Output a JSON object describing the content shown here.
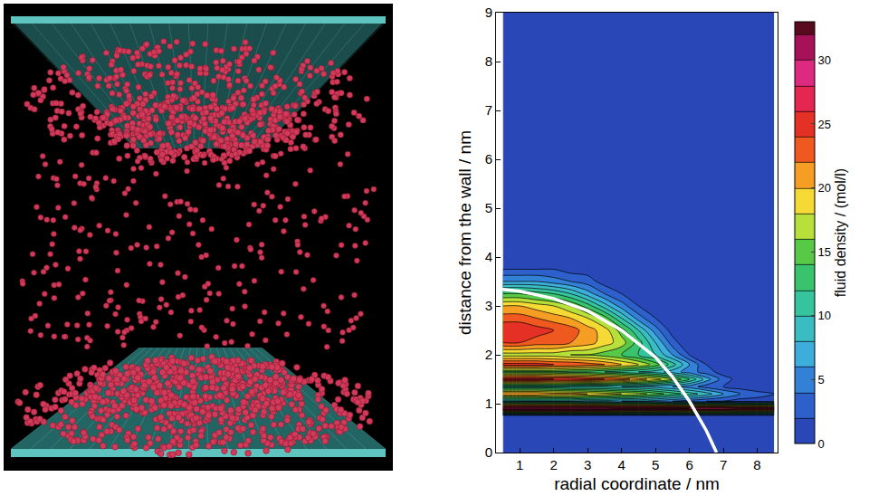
{
  "chart_data": {
    "type": "contour",
    "x_label": "radial coordinate / nm",
    "y_label": "distance from the wall / nm",
    "xlim": [
      0.3,
      8.6
    ],
    "xticks": [
      1,
      2,
      3,
      4,
      5,
      6,
      7,
      8
    ],
    "ylim": [
      0,
      9
    ],
    "yticks": [
      0,
      1,
      2,
      3,
      4,
      5,
      6,
      7,
      8,
      9
    ],
    "x": [
      0.5,
      1,
      1.5,
      2,
      2.5,
      3,
      3.5,
      4,
      4.5,
      5,
      5.5,
      6,
      6.5,
      7,
      7.5,
      8,
      8.5
    ],
    "y": [
      0,
      0.5,
      0.75,
      0.9,
      1.05,
      1.2,
      1.35,
      1.5,
      1.65,
      1.8,
      2.0,
      2.25,
      2.5,
      2.75,
      3.0,
      3.25,
      3.5,
      3.75,
      4.0,
      5,
      9
    ],
    "z": [
      [
        0,
        0,
        0,
        0,
        0,
        0,
        0,
        0,
        0,
        0,
        0,
        0,
        0,
        0,
        0,
        0,
        0
      ],
      [
        0,
        0,
        0,
        0,
        0,
        0,
        0,
        0,
        0,
        0,
        0,
        0,
        0,
        0,
        0,
        0,
        0
      ],
      [
        0,
        0,
        0,
        0,
        0,
        0,
        0,
        0,
        0,
        0,
        0,
        0,
        0,
        0,
        0,
        0,
        0
      ],
      [
        32,
        32,
        32,
        32,
        32,
        32,
        32,
        31,
        31,
        31,
        31,
        30,
        30,
        30,
        29,
        29,
        29
      ],
      [
        8,
        8,
        8,
        8,
        8,
        7,
        7,
        6,
        6,
        5,
        4,
        3,
        2,
        2,
        1,
        1,
        1
      ],
      [
        22,
        22,
        22,
        21,
        21,
        20,
        19,
        18,
        17,
        15,
        13,
        11,
        9,
        6,
        4,
        3,
        2
      ],
      [
        10,
        10,
        10,
        10,
        9,
        9,
        9,
        8,
        8,
        7,
        6,
        5,
        3,
        2,
        1,
        0,
        0
      ],
      [
        27,
        27,
        27,
        26,
        26,
        25,
        24,
        23,
        21,
        19,
        16,
        12,
        7,
        3,
        1,
        0,
        0
      ],
      [
        14,
        14,
        14,
        14,
        13,
        13,
        12,
        11,
        10,
        9,
        7,
        5,
        3,
        1,
        0,
        0,
        0
      ],
      [
        25,
        25,
        25,
        24,
        24,
        23,
        22,
        20,
        18,
        15,
        11,
        6,
        2,
        0,
        0,
        0,
        0
      ],
      [
        17,
        17,
        17,
        17,
        16,
        16,
        15,
        14,
        12,
        10,
        6,
        2,
        0,
        0,
        0,
        0,
        0
      ],
      [
        24,
        24,
        23,
        23,
        22,
        21,
        19,
        17,
        13,
        8,
        3,
        0,
        0,
        0,
        0,
        0,
        0
      ],
      [
        26,
        26,
        25,
        24,
        23,
        21,
        19,
        15,
        10,
        5,
        1,
        0,
        0,
        0,
        0,
        0,
        0
      ],
      [
        23,
        23,
        22,
        21,
        20,
        18,
        15,
        10,
        5,
        2,
        0,
        0,
        0,
        0,
        0,
        0,
        0
      ],
      [
        20,
        20,
        19,
        18,
        16,
        13,
        9,
        5,
        2,
        0,
        0,
        0,
        0,
        0,
        0,
        0,
        0
      ],
      [
        14,
        14,
        13,
        12,
        10,
        7,
        4,
        2,
        0,
        0,
        0,
        0,
        0,
        0,
        0,
        0,
        0
      ],
      [
        6,
        6,
        6,
        5,
        4,
        3,
        1,
        0,
        0,
        0,
        0,
        0,
        0,
        0,
        0,
        0,
        0
      ],
      [
        2,
        2,
        2,
        2,
        1,
        1,
        0,
        0,
        0,
        0,
        0,
        0,
        0,
        0,
        0,
        0,
        0
      ],
      [
        0,
        0,
        0,
        0,
        0,
        0,
        0,
        0,
        0,
        0,
        0,
        0,
        0,
        0,
        0,
        0,
        0
      ],
      [
        0,
        0,
        0,
        0,
        0,
        0,
        0,
        0,
        0,
        0,
        0,
        0,
        0,
        0,
        0,
        0,
        0
      ],
      [
        0,
        0,
        0,
        0,
        0,
        0,
        0,
        0,
        0,
        0,
        0,
        0,
        0,
        0,
        0,
        0,
        0
      ]
    ],
    "colorbar": {
      "title": "fluid density / (mol/l)",
      "range": [
        0,
        33
      ],
      "ticks": [
        0,
        5,
        10,
        15,
        20,
        25,
        30
      ]
    },
    "curve": {
      "type": "line",
      "color": "#ffffff",
      "x": [
        0.3,
        1,
        2,
        3,
        4,
        5,
        5.5,
        6,
        6.5,
        6.8
      ],
      "y": [
        3.35,
        3.3,
        3.15,
        2.9,
        2.5,
        1.95,
        1.55,
        1.05,
        0.45,
        0
      ]
    }
  }
}
